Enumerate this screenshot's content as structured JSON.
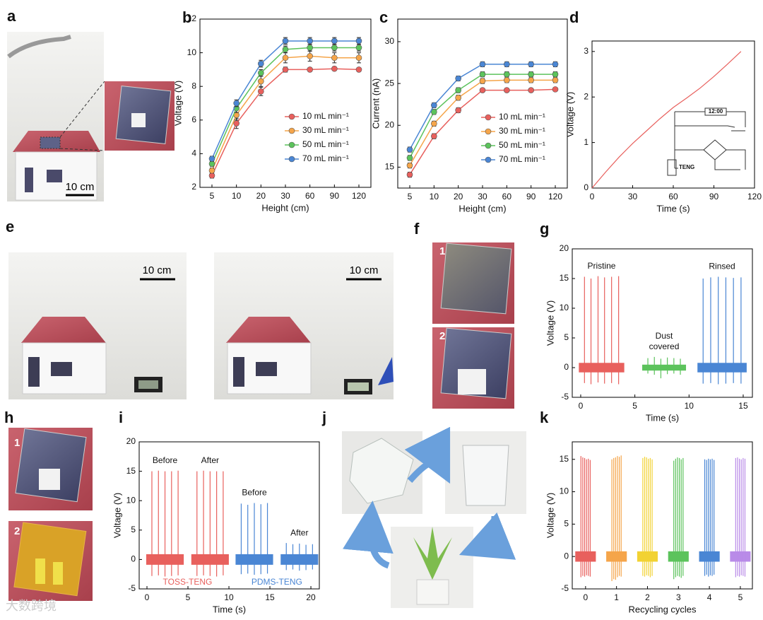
{
  "panel_labels": [
    "a",
    "b",
    "c",
    "d",
    "e",
    "f",
    "g",
    "h",
    "i",
    "j",
    "k"
  ],
  "photo_texts": {
    "a_scale": "10 cm",
    "e_scale": [
      "10 cm",
      "10 cm"
    ],
    "f_numbers": [
      "1",
      "2"
    ],
    "h_numbers": [
      "1",
      "2"
    ]
  },
  "watermark": "大数跨境",
  "chart_data": [
    {
      "type": "line",
      "xlabel": "Height (cm)",
      "ylabel": "Voltage (V)",
      "categories": [
        "5",
        "10",
        "20",
        "30",
        "60",
        "90",
        "120"
      ],
      "ylim": [
        2,
        12
      ],
      "yticks": [
        2,
        4,
        6,
        8,
        10,
        12
      ],
      "legend": "lower right",
      "series": [
        {
          "name": "10 mL min⁻¹",
          "color": "#e8605d",
          "values": [
            2.7,
            5.8,
            7.7,
            9.0,
            9.0,
            9.05,
            9.0
          ],
          "errors": [
            0.15,
            0.3,
            0.25,
            0.15,
            0.1,
            0.1,
            0.1
          ]
        },
        {
          "name": "30 mL min⁻¹",
          "color": "#f5a54a",
          "values": [
            3.0,
            6.3,
            8.3,
            9.7,
            9.8,
            9.7,
            9.7
          ],
          "errors": [
            0.15,
            0.3,
            0.3,
            0.3,
            0.3,
            0.3,
            0.3
          ]
        },
        {
          "name": "50 mL min⁻¹",
          "color": "#5cc35c",
          "values": [
            3.4,
            6.7,
            8.8,
            10.2,
            10.3,
            10.3,
            10.3
          ],
          "errors": [
            0.15,
            0.25,
            0.2,
            0.2,
            0.2,
            0.2,
            0.2
          ]
        },
        {
          "name": "70 mL min⁻¹",
          "color": "#4a86d4",
          "values": [
            3.7,
            7.0,
            9.35,
            10.7,
            10.7,
            10.7,
            10.7
          ],
          "errors": [
            0.15,
            0.2,
            0.2,
            0.2,
            0.2,
            0.2,
            0.2
          ]
        }
      ]
    },
    {
      "type": "line",
      "xlabel": "Height (cm)",
      "ylabel": "Current (nA)",
      "categories": [
        "5",
        "10",
        "20",
        "30",
        "60",
        "90",
        "120"
      ],
      "ylim": [
        12.5,
        32.7
      ],
      "yticks": [
        15,
        20,
        25,
        30
      ],
      "legend": "lower right",
      "series": [
        {
          "name": "10 mL min⁻¹",
          "color": "#e8605d",
          "values": [
            14.1,
            18.7,
            21.8,
            24.2,
            24.2,
            24.2,
            24.3
          ],
          "errors": [
            0.3,
            0.3,
            0.3,
            0.2,
            0.2,
            0.2,
            0.2
          ]
        },
        {
          "name": "30 mL min⁻¹",
          "color": "#f5a54a",
          "values": [
            15.2,
            20.2,
            23.3,
            25.3,
            25.4,
            25.4,
            25.4
          ],
          "errors": [
            0.3,
            0.3,
            0.3,
            0.3,
            0.3,
            0.3,
            0.3
          ]
        },
        {
          "name": "50 mL min⁻¹",
          "color": "#5cc35c",
          "values": [
            16.1,
            21.6,
            24.2,
            26.1,
            26.1,
            26.1,
            26.1
          ],
          "errors": [
            0.3,
            0.3,
            0.3,
            0.3,
            0.3,
            0.3,
            0.3
          ]
        },
        {
          "name": "70 mL min⁻¹",
          "color": "#4a86d4",
          "values": [
            17.1,
            22.4,
            25.6,
            27.3,
            27.3,
            27.3,
            27.3
          ],
          "errors": [
            0.3,
            0.3,
            0.3,
            0.3,
            0.3,
            0.3,
            0.3
          ]
        }
      ]
    },
    {
      "type": "curve",
      "xlabel": "Time (s)",
      "ylabel": "Voltage (V)",
      "xlim": [
        0,
        120
      ],
      "xticks": [
        0,
        30,
        60,
        90,
        120
      ],
      "ylim": [
        0,
        3.23
      ],
      "yticks": [
        0,
        1,
        2,
        3
      ],
      "color": "#e8605d",
      "x": [
        0,
        10,
        20,
        30,
        40,
        50,
        60,
        70,
        80,
        90,
        100,
        110
      ],
      "values": [
        0,
        0.35,
        0.68,
        0.98,
        1.25,
        1.52,
        1.77,
        1.98,
        2.2,
        2.45,
        2.72,
        3.0
      ],
      "annotations": [
        "12:00",
        "TENG"
      ]
    },
    {
      "type": "spikes",
      "xlabel": "Time (s)",
      "ylabel": "Voltage (V)",
      "xlim": [
        -0.78,
        15.85
      ],
      "xticks": [
        0,
        5,
        10,
        15
      ],
      "ylim": [
        -5,
        20
      ],
      "yticks": [
        -5,
        0,
        5,
        10,
        15,
        20
      ],
      "series": [
        {
          "label": [
            "Pristine"
          ],
          "color": "#e8605d",
          "noise": 0.8,
          "x": [
            0.35,
            0.95,
            1.6,
            2.2,
            2.85,
            3.5
          ],
          "values": [
            15.3,
            15.0,
            15.4,
            15.2,
            15.3,
            15.4
          ],
          "lows": [
            -2.6,
            -2.8,
            -2.5,
            -2.7,
            -2.6,
            -2.8
          ]
        },
        {
          "label": [
            "Dust",
            "covered"
          ],
          "color": "#5cc35c",
          "noise": 0.5,
          "x": [
            6.2,
            6.8,
            7.4,
            8.0,
            8.6,
            9.2
          ],
          "values": [
            1.6,
            1.8,
            1.5,
            1.7,
            1.6,
            1.5
          ],
          "lows": [
            -1.0,
            -1.2,
            -1.8,
            -1.1,
            -1.0,
            -1.2
          ]
        },
        {
          "label": [
            "Rinsed"
          ],
          "color": "#4a86d4",
          "noise": 0.8,
          "x": [
            11.3,
            12.0,
            12.7,
            13.4,
            14.1,
            14.8
          ],
          "values": [
            15.0,
            15.2,
            15.3,
            15.2,
            15.1,
            15.2
          ],
          "lows": [
            -2.7,
            -2.6,
            -2.8,
            -2.7,
            -2.6,
            -2.7
          ]
        }
      ]
    },
    {
      "type": "spikes",
      "xlabel": "Time (s)",
      "ylabel": "Voltage (V)",
      "xlim": [
        -0.95,
        21.03
      ],
      "xticks": [
        0,
        5,
        10,
        15,
        20
      ],
      "ylim": [
        -5,
        20
      ],
      "yticks": [
        -5,
        0,
        5,
        10,
        15,
        20
      ],
      "groups": [
        {
          "name": "TOSS-TENG",
          "color": "#e8605d"
        },
        {
          "name": "PDMS-TENG",
          "color": "#4a86d4"
        }
      ],
      "series": [
        {
          "label": [
            "Before"
          ],
          "group": 0,
          "color": "#e8605d",
          "noise": 0.9,
          "x": [
            0.6,
            1.4,
            2.2,
            3.0,
            3.8
          ],
          "values": [
            15.0,
            15.1,
            15.0,
            15.0,
            15.1
          ],
          "lows": [
            -2.8,
            -2.7,
            -2.9,
            -2.8,
            -2.7
          ]
        },
        {
          "label": [
            "After"
          ],
          "group": 0,
          "color": "#e8605d",
          "noise": 0.9,
          "x": [
            6.1,
            6.9,
            7.7,
            8.5,
            9.3
          ],
          "values": [
            15.0,
            15.1,
            15.0,
            15.0,
            15.0
          ],
          "lows": [
            -2.8,
            -2.7,
            -2.8,
            -2.9,
            -2.7
          ]
        },
        {
          "label": [
            "Before"
          ],
          "group": 1,
          "color": "#4a86d4",
          "noise": 0.9,
          "x": [
            11.5,
            12.3,
            13.1,
            13.9,
            14.7
          ],
          "values": [
            9.5,
            9.3,
            9.6,
            9.4,
            9.6
          ],
          "lows": [
            -2.5,
            -2.4,
            -2.6,
            -2.5,
            -2.4
          ]
        },
        {
          "label": [
            "After"
          ],
          "group": 1,
          "color": "#4a86d4",
          "noise": 0.9,
          "x": [
            17.0,
            17.8,
            18.6,
            19.4,
            20.2
          ],
          "values": [
            2.8,
            2.6,
            2.7,
            2.5,
            2.6
          ],
          "lows": [
            -1.8,
            -1.7,
            -1.9,
            -1.8,
            -1.7
          ]
        }
      ]
    },
    {
      "type": "spikes",
      "xlabel": "Recycling cycles",
      "ylabel": "Voltage (V)",
      "xlim": [
        -0.43,
        5.39
      ],
      "xticks": [
        0,
        1,
        2,
        3,
        4,
        5
      ],
      "ylim": [
        -5,
        17.7
      ],
      "yticks": [
        -5,
        0,
        5,
        10,
        15
      ],
      "series": [
        {
          "color": "#e8605d",
          "noise": 0.8,
          "x": [
            -0.15,
            -0.09,
            -0.03,
            0.03,
            0.09,
            0.15
          ],
          "values": [
            15.5,
            15.3,
            15.2,
            15.0,
            15.1,
            14.9
          ],
          "lows": [
            -3.2,
            -3.0,
            -3.1,
            -2.9,
            -3.0,
            -3.1
          ]
        },
        {
          "color": "#f5a54a",
          "noise": 0.8,
          "x": [
            0.85,
            0.91,
            0.97,
            1.03,
            1.09,
            1.15
          ],
          "values": [
            15.0,
            15.2,
            15.3,
            15.5,
            15.4,
            15.6
          ],
          "lows": [
            -3.8,
            -3.5,
            -3.6,
            -3.2,
            -3.0,
            -3.1
          ]
        },
        {
          "color": "#f2d233",
          "noise": 0.8,
          "x": [
            1.85,
            1.91,
            1.97,
            2.03,
            2.09,
            2.15
          ],
          "values": [
            15.2,
            15.4,
            15.3,
            15.1,
            15.2,
            15.0
          ],
          "lows": [
            -3.0,
            -3.1,
            -2.9,
            -3.0,
            -3.2,
            -3.0
          ]
        },
        {
          "color": "#5cc35c",
          "noise": 0.8,
          "x": [
            2.85,
            2.91,
            2.97,
            3.03,
            3.09,
            3.15
          ],
          "values": [
            14.8,
            15.1,
            15.3,
            15.2,
            15.0,
            15.2
          ],
          "lows": [
            -3.5,
            -3.2,
            -3.0,
            -3.1,
            -3.3,
            -3.0
          ]
        },
        {
          "color": "#4a86d4",
          "noise": 0.8,
          "x": [
            3.85,
            3.91,
            3.97,
            4.03,
            4.09,
            4.15
          ],
          "values": [
            15.0,
            14.9,
            15.1,
            15.0,
            15.1,
            14.9
          ],
          "lows": [
            -3.0,
            -2.8,
            -3.1,
            -2.9,
            -3.0,
            -2.8
          ]
        },
        {
          "color": "#b98be8",
          "noise": 0.8,
          "x": [
            4.85,
            4.91,
            4.97,
            5.03,
            5.09,
            5.15
          ],
          "values": [
            15.2,
            15.3,
            15.1,
            15.0,
            15.2,
            15.1
          ],
          "lows": [
            -3.2,
            -3.0,
            -3.1,
            -2.9,
            -3.0,
            -3.1
          ]
        }
      ]
    }
  ]
}
